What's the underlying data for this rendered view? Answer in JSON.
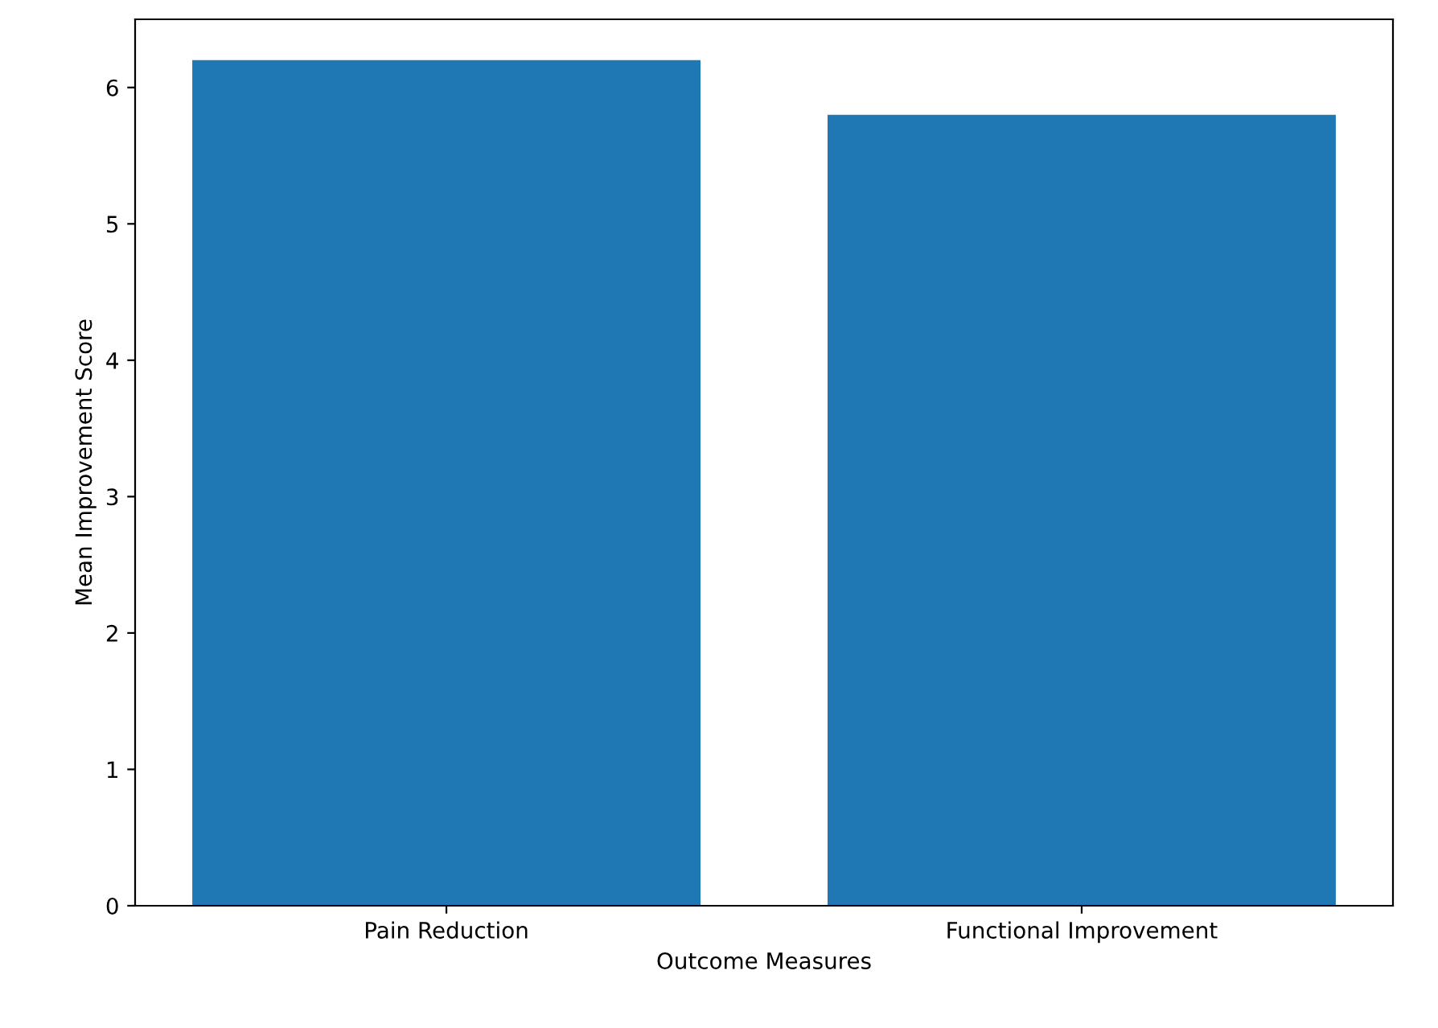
{
  "chart_data": {
    "type": "bar",
    "xlabel": "Outcome Measures",
    "ylabel": "Mean Improvement Score",
    "categories": [
      "Pain Reduction",
      "Functional Improvement"
    ],
    "values": [
      6.2,
      5.8
    ],
    "color": "#1f77b4",
    "ylim": [
      0,
      6.5
    ],
    "yticks": [
      0,
      1,
      2,
      3,
      4,
      5,
      6
    ],
    "grid": false
  }
}
